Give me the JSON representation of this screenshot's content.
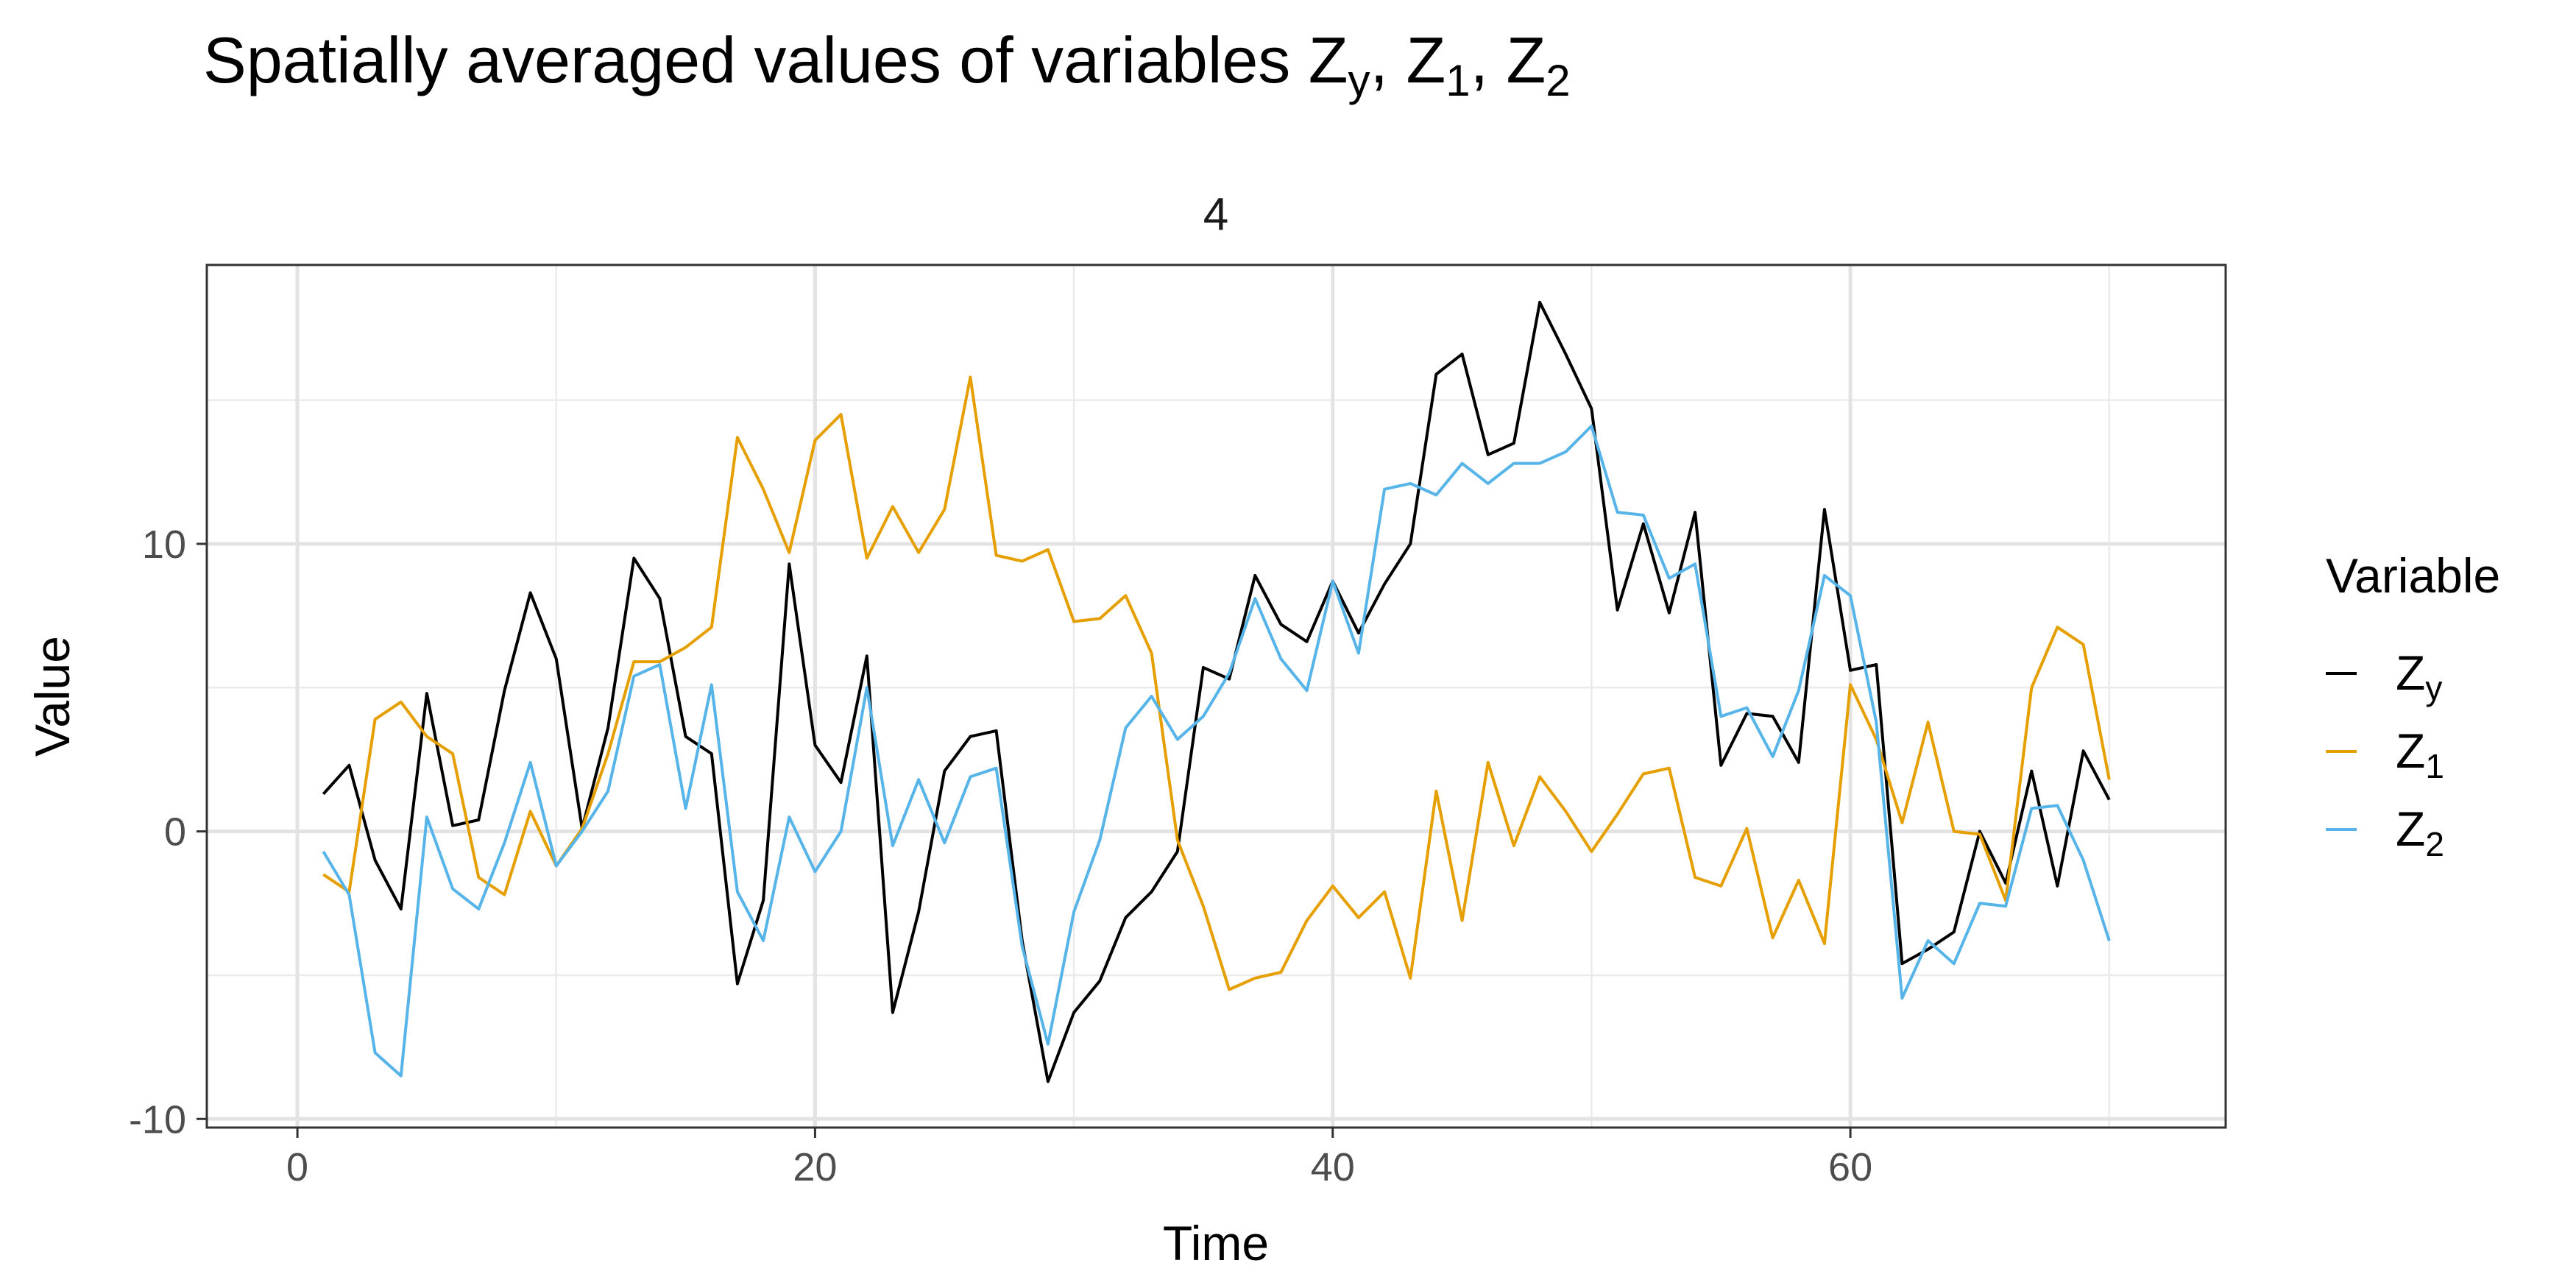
{
  "chart_data": {
    "type": "line",
    "title": {
      "text": "Spatially averaged values of variables ",
      "parts": [
        {
          "base": "Z",
          "sub": "y",
          "sep": ", "
        },
        {
          "base": "Z",
          "sub": "1",
          "sep": ", "
        },
        {
          "base": "Z",
          "sub": "2",
          "sep": ""
        }
      ]
    },
    "panel_label": "4",
    "xlabel": "Time",
    "ylabel": "Value",
    "xlim": [
      -3.5,
      74.5
    ],
    "ylim": [
      -10.3,
      19.7
    ],
    "x_ticks": [
      0,
      20,
      40,
      60
    ],
    "x_tick_labels": [
      "0",
      "20",
      "40",
      "60"
    ],
    "y_ticks": [
      -10,
      0,
      10
    ],
    "y_tick_labels": [
      "-10",
      "0",
      "10"
    ],
    "grid": true,
    "legend": {
      "title": "Variable",
      "position": "right",
      "entries": [
        {
          "base": "Z",
          "sub": "y",
          "color": "#000000"
        },
        {
          "base": "Z",
          "sub": "1",
          "color": "#E69F00"
        },
        {
          "base": "Z",
          "sub": "2",
          "color": "#56B4E9"
        }
      ]
    },
    "x": [
      1,
      2,
      3,
      4,
      5,
      6,
      7,
      8,
      9,
      10,
      11,
      12,
      13,
      14,
      15,
      16,
      17,
      18,
      19,
      20,
      21,
      22,
      23,
      24,
      25,
      26,
      27,
      28,
      29,
      30,
      31,
      32,
      33,
      34,
      35,
      36,
      37,
      38,
      39,
      40,
      41,
      42,
      43,
      44,
      45,
      46,
      47,
      48,
      49,
      50,
      51,
      52,
      53,
      54,
      55,
      56,
      57,
      58,
      59,
      60,
      61,
      62,
      63,
      64,
      65,
      66,
      67,
      68,
      69,
      70
    ],
    "series": [
      {
        "name": "Zy",
        "color": "#000000",
        "values": [
          1.3,
          2.3,
          -1.0,
          -2.7,
          4.8,
          0.2,
          0.4,
          4.9,
          8.3,
          6.0,
          0.1,
          3.6,
          9.5,
          8.1,
          3.3,
          2.7,
          -5.3,
          -2.4,
          9.3,
          3.0,
          1.7,
          6.1,
          -6.3,
          -2.8,
          2.1,
          3.3,
          3.5,
          -3.8,
          -8.7,
          -6.3,
          -5.2,
          -3.0,
          -2.1,
          -0.7,
          5.7,
          5.3,
          8.9,
          7.2,
          6.6,
          8.7,
          6.9,
          8.6,
          10.0,
          15.9,
          16.6,
          13.1,
          13.5,
          18.4,
          16.6,
          14.7,
          7.7,
          10.7,
          7.6,
          11.1,
          2.3,
          4.1,
          4.0,
          2.4,
          11.2,
          5.6,
          5.8,
          -4.6,
          -4.1,
          -3.5,
          0.0,
          -1.8,
          2.1,
          -1.9,
          2.8,
          1.1
        ]
      },
      {
        "name": "Z1",
        "color": "#E69F00",
        "values": [
          -1.5,
          -2.1,
          3.9,
          4.5,
          3.3,
          2.7,
          -1.6,
          -2.2,
          0.7,
          -1.2,
          0.1,
          2.7,
          5.9,
          5.9,
          6.4,
          7.1,
          13.7,
          11.9,
          9.7,
          13.6,
          14.5,
          9.5,
          11.3,
          9.7,
          11.2,
          15.8,
          9.6,
          9.4,
          9.8,
          7.3,
          7.4,
          8.2,
          6.2,
          -0.3,
          -2.6,
          -5.5,
          -5.1,
          -4.9,
          -3.1,
          -1.9,
          -3.0,
          -2.1,
          -5.1,
          1.4,
          -3.1,
          2.4,
          -0.5,
          1.9,
          0.7,
          -0.7,
          0.6,
          2.0,
          2.2,
          -1.6,
          -1.9,
          0.1,
          -3.7,
          -1.7,
          -3.9,
          5.1,
          3.2,
          0.3,
          3.8,
          0.0,
          -0.1,
          -2.4,
          5.0,
          7.1,
          6.5,
          1.8
        ]
      },
      {
        "name": "Z2",
        "color": "#56B4E9",
        "values": [
          -0.7,
          -2.2,
          -7.7,
          -8.5,
          0.5,
          -2.0,
          -2.7,
          -0.4,
          2.4,
          -1.2,
          0.0,
          1.4,
          5.4,
          5.8,
          0.8,
          5.1,
          -2.1,
          -3.8,
          0.5,
          -1.4,
          0.0,
          5.0,
          -0.5,
          1.8,
          -0.4,
          1.9,
          2.2,
          -4.0,
          -7.4,
          -2.8,
          -0.3,
          3.6,
          4.7,
          3.2,
          4.0,
          5.5,
          8.1,
          6.0,
          4.9,
          8.7,
          6.2,
          11.9,
          12.1,
          11.7,
          12.8,
          12.1,
          12.8,
          12.8,
          13.2,
          14.1,
          11.1,
          11.0,
          8.8,
          9.3,
          4.0,
          4.3,
          2.6,
          4.9,
          8.9,
          8.2,
          3.8,
          -5.8,
          -3.8,
          -4.6,
          -2.5,
          -2.6,
          0.8,
          0.9,
          -1.0,
          -3.8
        ]
      }
    ]
  }
}
